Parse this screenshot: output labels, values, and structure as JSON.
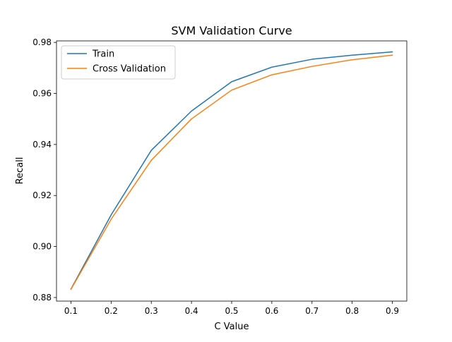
{
  "chart_data": {
    "type": "line",
    "title": "SVM Validation Curve",
    "xlabel": "C Value",
    "ylabel": "Recall",
    "x": [
      0.1,
      0.2,
      0.3,
      0.4,
      0.5,
      0.6,
      0.7,
      0.8,
      0.9
    ],
    "x_ticks": [
      "0.1",
      "0.2",
      "0.3",
      "0.4",
      "0.5",
      "0.6",
      "0.7",
      "0.8",
      "0.9"
    ],
    "y_ticks": [
      0.88,
      0.9,
      0.92,
      0.94,
      0.96,
      0.98
    ],
    "y_tick_labels": [
      "0.88",
      "0.90",
      "0.92",
      "0.94",
      "0.96",
      "0.98"
    ],
    "xlim": [
      0.064,
      0.936
    ],
    "ylim": [
      0.8786,
      0.9806
    ],
    "grid": false,
    "legend_position": "upper left",
    "series": [
      {
        "name": "Train",
        "color": "#1f77b4",
        "values": [
          0.8833,
          0.9124,
          0.9377,
          0.9531,
          0.9646,
          0.9703,
          0.9734,
          0.975,
          0.9763
        ]
      },
      {
        "name": "Cross Validation",
        "color": "#ff7f0e",
        "values": [
          0.8832,
          0.9107,
          0.9338,
          0.95,
          0.9613,
          0.9673,
          0.9706,
          0.9732,
          0.975
        ]
      }
    ]
  }
}
